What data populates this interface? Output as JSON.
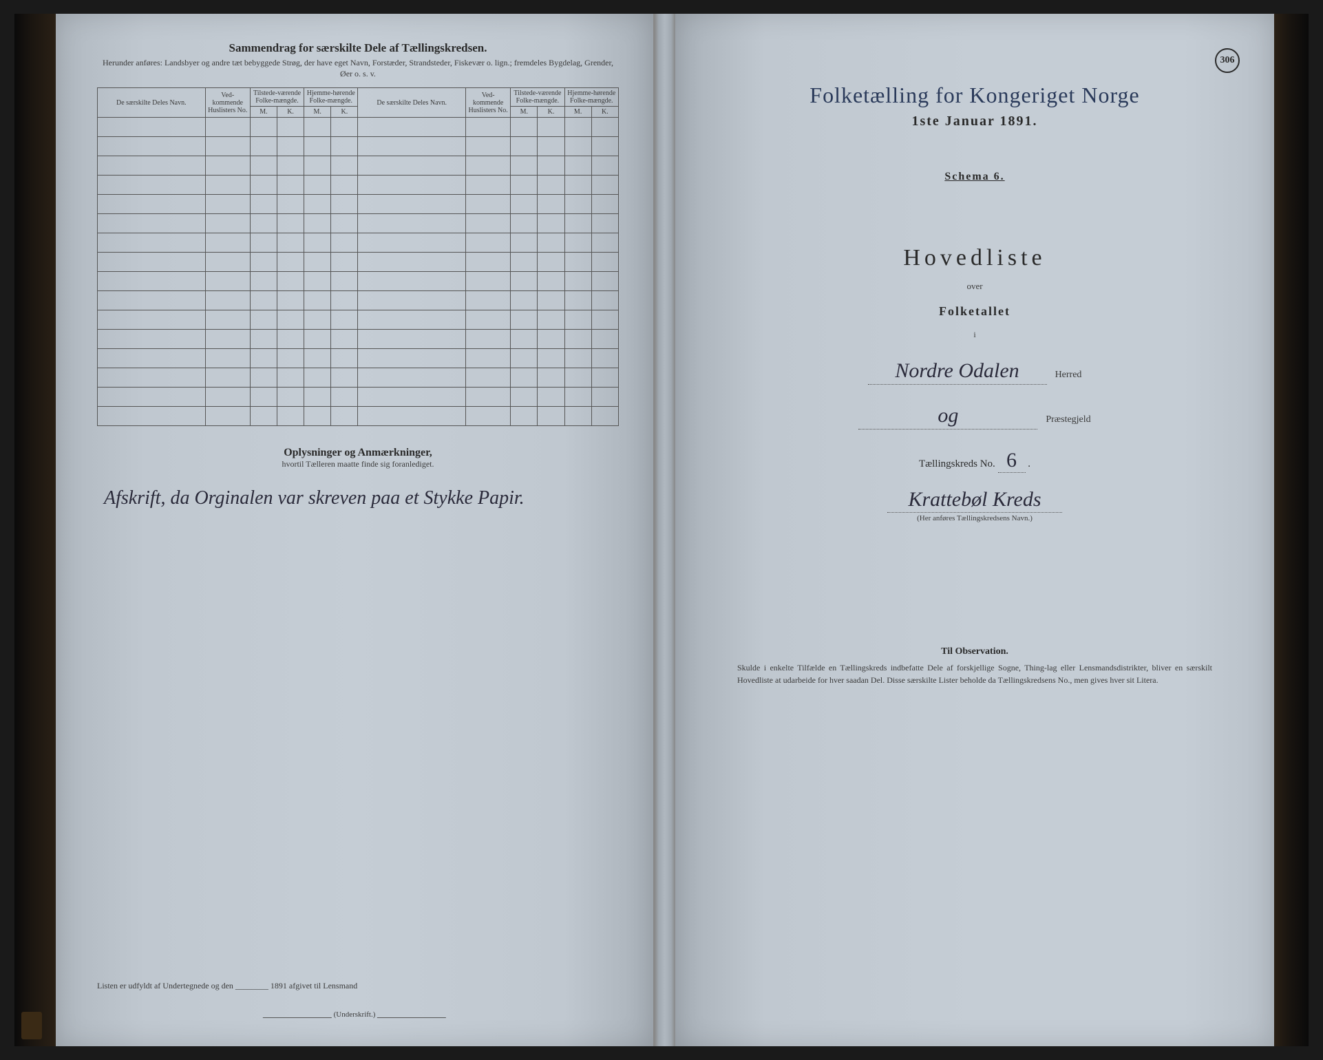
{
  "pageNumber": "306",
  "leftPage": {
    "summaryTitle": "Sammendrag for særskilte Dele af Tællingskredsen.",
    "summarySub": "Herunder anføres: Landsbyer og andre tæt bebyggede Strøg, der have eget Navn, Forstæder, Strandsteder, Fiskevær o. lign.; fremdeles Bygdelag, Grender, Øer o. s. v.",
    "headers": {
      "colName": "De særskilte Deles Navn.",
      "colNo": "Ved-kommende Huslisters No.",
      "colPresent": "Tilstede-værende Folke-mængde.",
      "colHome": "Hjemme-hørende Folke-mængde.",
      "m": "M.",
      "k": "K."
    },
    "blankRows": 16,
    "notesTitle": "Oplysninger og Anmærkninger,",
    "notesSub": "hvortil Tælleren maatte finde sig foranlediget.",
    "handwritten": "Afskrift, da Orginalen var skreven paa et Stykke Papir.",
    "footerLine": "Listen er udfyldt af Undertegnede og den ________ 1891 afgivet til Lensmand",
    "signatureLabel": "(Underskrift.)"
  },
  "rightPage": {
    "censusTitle": "Folketælling for Kongeriget Norge",
    "censusDate": "1ste Januar 1891.",
    "schema": "Schema 6.",
    "hovedliste": "Hovedliste",
    "over": "over",
    "folketallet": "Folketallet",
    "i": "i",
    "herredValue": "Nordre Odalen",
    "herredLabel": "Herred",
    "prestegjeldValue": "og",
    "prestegjeldLabel": "Præstegjeld",
    "kredsLabel": "Tællingskreds No.",
    "kredsNo": "6",
    "kredsName": "Krattebøl Kreds",
    "kredsCaption": "(Her anføres Tællingskredsens Navn.)",
    "observationTitle": "Til Observation.",
    "observationText": "Skulde i enkelte Tilfælde en Tællingskreds indbefatte Dele af forskjellige Sogne, Thing-lag eller Lensmandsdistrikter, bliver en særskilt Hovedliste at udarbeide for hver saadan Del. Disse særskilte Lister beholde da Tællingskredsens No., men gives hver sit Litera."
  },
  "colors": {
    "pageBase": "#c5cdd5",
    "ink": "#2a2a2a",
    "blueInk": "#2a3a5a",
    "border": "#555"
  }
}
